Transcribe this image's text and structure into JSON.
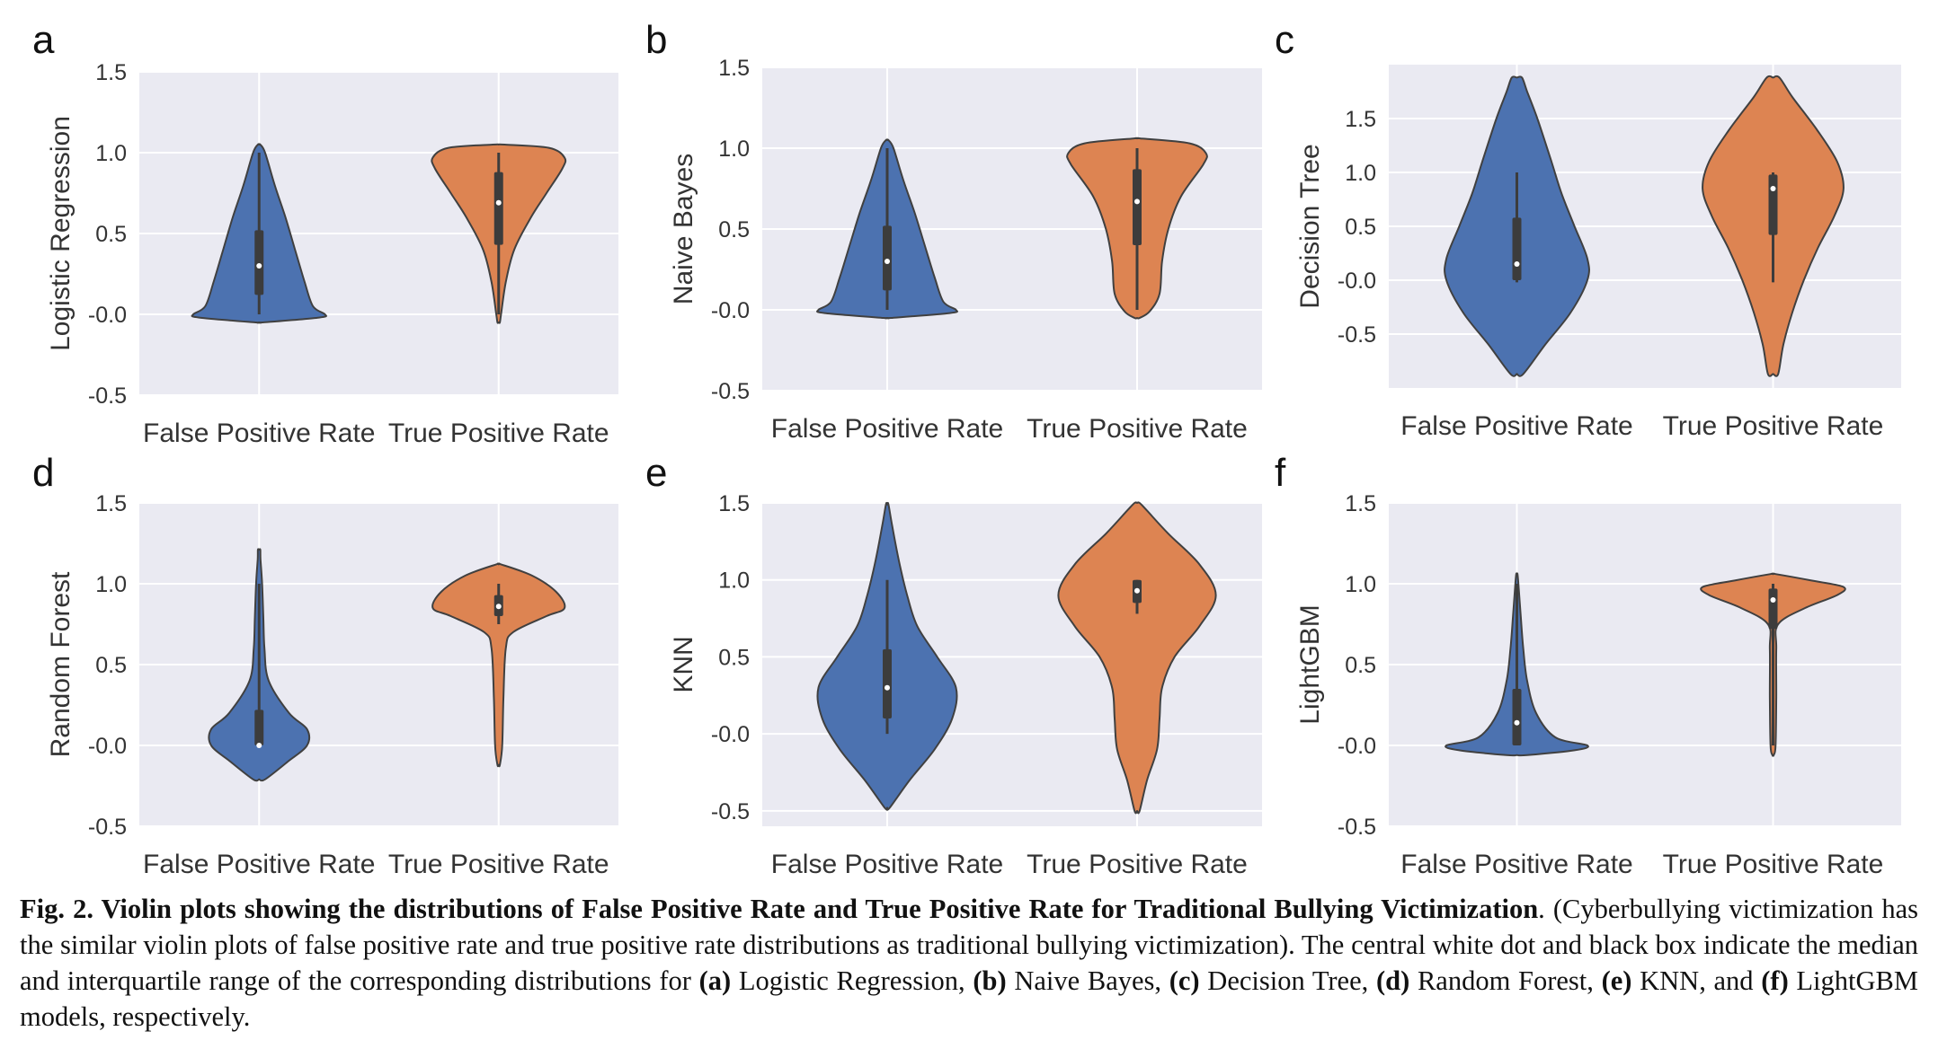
{
  "panel_letters": [
    "a",
    "b",
    "c",
    "d",
    "e",
    "f"
  ],
  "chart_data": [
    {
      "type": "violin",
      "ylabel": "Logistic Regression",
      "categories": [
        "False Positive Rate",
        "True Positive Rate"
      ],
      "yticks": [
        "-0.5",
        "-0.0",
        "0.5",
        "1.0",
        "1.5"
      ],
      "ylim": [
        -0.5,
        1.5
      ],
      "grid": true,
      "colors": [
        "#4c72b0",
        "#dd8452"
      ],
      "series": [
        {
          "min": -0.05,
          "max": 1.05,
          "q1": 0.12,
          "median": 0.3,
          "q3": 0.52,
          "whisker_low": 0.0,
          "whisker_high": 1.0,
          "profile": [
            [
              -0.05,
              0.03
            ],
            [
              -0.02,
              0.5
            ],
            [
              0.0,
              0.55
            ],
            [
              0.05,
              0.45
            ],
            [
              0.2,
              0.38
            ],
            [
              0.4,
              0.3
            ],
            [
              0.6,
              0.22
            ],
            [
              0.8,
              0.13
            ],
            [
              1.0,
              0.05
            ],
            [
              1.05,
              0.01
            ]
          ]
        },
        {
          "min": -0.05,
          "max": 1.05,
          "q1": 0.43,
          "median": 0.69,
          "q3": 0.88,
          "whisker_low": 0.0,
          "whisker_high": 1.0,
          "profile": [
            [
              -0.05,
              0.01
            ],
            [
              0.0,
              0.02
            ],
            [
              0.2,
              0.06
            ],
            [
              0.4,
              0.13
            ],
            [
              0.6,
              0.27
            ],
            [
              0.75,
              0.4
            ],
            [
              0.9,
              0.53
            ],
            [
              0.97,
              0.55
            ],
            [
              1.03,
              0.42
            ],
            [
              1.05,
              0.05
            ]
          ]
        }
      ]
    },
    {
      "type": "violin",
      "ylabel": "Naive Bayes",
      "categories": [
        "False Positive Rate",
        "True Positive Rate"
      ],
      "yticks": [
        "-0.5",
        "-0.0",
        "0.5",
        "1.0",
        "1.5"
      ],
      "ylim": [
        -0.5,
        1.5
      ],
      "grid": true,
      "colors": [
        "#4c72b0",
        "#dd8452"
      ],
      "series": [
        {
          "min": -0.05,
          "max": 1.05,
          "q1": 0.12,
          "median": 0.3,
          "q3": 0.52,
          "whisker_low": 0.0,
          "whisker_high": 1.0,
          "profile": [
            [
              -0.05,
              0.03
            ],
            [
              -0.02,
              0.5
            ],
            [
              0.0,
              0.55
            ],
            [
              0.05,
              0.45
            ],
            [
              0.2,
              0.38
            ],
            [
              0.4,
              0.3
            ],
            [
              0.6,
              0.22
            ],
            [
              0.8,
              0.13
            ],
            [
              1.0,
              0.05
            ],
            [
              1.05,
              0.01
            ]
          ]
        },
        {
          "min": -0.05,
          "max": 1.06,
          "q1": 0.4,
          "median": 0.67,
          "q3": 0.87,
          "whisker_low": 0.0,
          "whisker_high": 1.0,
          "profile": [
            [
              -0.05,
              0.02
            ],
            [
              -0.01,
              0.1
            ],
            [
              0.1,
              0.18
            ],
            [
              0.3,
              0.2
            ],
            [
              0.5,
              0.25
            ],
            [
              0.7,
              0.35
            ],
            [
              0.9,
              0.53
            ],
            [
              0.97,
              0.55
            ],
            [
              1.03,
              0.42
            ],
            [
              1.06,
              0.03
            ]
          ]
        }
      ]
    },
    {
      "type": "violin",
      "ylabel": "Decision Tree",
      "categories": [
        "False Positive Rate",
        "True Positive Rate"
      ],
      "yticks": [
        "-0.5",
        "-0.0",
        "0.5",
        "1.0",
        "1.5"
      ],
      "ylim": [
        -1.0,
        2.0
      ],
      "grid": true,
      "colors": [
        "#4c72b0",
        "#dd8452"
      ],
      "series": [
        {
          "min": -0.87,
          "max": 1.88,
          "q1": 0.0,
          "median": 0.15,
          "q3": 0.58,
          "whisker_low": -0.02,
          "whisker_high": 1.0,
          "profile": [
            [
              -0.87,
              0.05
            ],
            [
              -0.6,
              0.22
            ],
            [
              -0.3,
              0.42
            ],
            [
              0.0,
              0.55
            ],
            [
              0.2,
              0.55
            ],
            [
              0.5,
              0.45
            ],
            [
              0.8,
              0.35
            ],
            [
              1.1,
              0.27
            ],
            [
              1.5,
              0.16
            ],
            [
              1.75,
              0.08
            ],
            [
              1.88,
              0.04
            ]
          ]
        },
        {
          "min": -0.87,
          "max": 1.88,
          "q1": 0.42,
          "median": 0.85,
          "q3": 0.98,
          "whisker_low": -0.02,
          "whisker_high": 1.0,
          "profile": [
            [
              -0.87,
              0.04
            ],
            [
              -0.6,
              0.08
            ],
            [
              -0.3,
              0.15
            ],
            [
              0.0,
              0.24
            ],
            [
              0.3,
              0.35
            ],
            [
              0.6,
              0.48
            ],
            [
              0.85,
              0.55
            ],
            [
              1.1,
              0.5
            ],
            [
              1.4,
              0.34
            ],
            [
              1.7,
              0.15
            ],
            [
              1.88,
              0.05
            ]
          ]
        }
      ]
    },
    {
      "type": "violin",
      "ylabel": "Random Forest",
      "categories": [
        "False Positive Rate",
        "True Positive Rate"
      ],
      "yticks": [
        "-0.5",
        "-0.0",
        "0.5",
        "1.0",
        "1.5"
      ],
      "ylim": [
        -0.5,
        1.5
      ],
      "grid": true,
      "colors": [
        "#4c72b0",
        "#dd8452"
      ],
      "series": [
        {
          "min": -0.21,
          "max": 1.21,
          "q1": 0.0,
          "median": 0.0,
          "q3": 0.22,
          "whisker_low": -0.01,
          "whisker_high": 1.0,
          "profile": [
            [
              -0.21,
              0.05
            ],
            [
              -0.1,
              0.24
            ],
            [
              0.0,
              0.4
            ],
            [
              0.1,
              0.4
            ],
            [
              0.2,
              0.25
            ],
            [
              0.4,
              0.08
            ],
            [
              0.6,
              0.045
            ],
            [
              0.8,
              0.035
            ],
            [
              1.0,
              0.025
            ],
            [
              1.15,
              0.012
            ],
            [
              1.21,
              0.01
            ]
          ]
        },
        {
          "min": -0.12,
          "max": 1.12,
          "q1": 0.8,
          "median": 0.86,
          "q3": 0.93,
          "whisker_low": 0.75,
          "whisker_high": 1.0,
          "profile": [
            [
              -0.12,
              0.01
            ],
            [
              0.0,
              0.03
            ],
            [
              0.3,
              0.04
            ],
            [
              0.6,
              0.06
            ],
            [
              0.7,
              0.12
            ],
            [
              0.8,
              0.4
            ],
            [
              0.85,
              0.55
            ],
            [
              0.95,
              0.48
            ],
            [
              1.05,
              0.28
            ],
            [
              1.12,
              0.02
            ]
          ]
        }
      ]
    },
    {
      "type": "violin",
      "ylabel": "KNN",
      "categories": [
        "False Positive Rate",
        "True Positive Rate"
      ],
      "yticks": [
        "-0.5",
        "-0.0",
        "0.5",
        "1.0",
        "1.5"
      ],
      "ylim": [
        -0.6,
        1.5
      ],
      "grid": true,
      "colors": [
        "#4c72b0",
        "#dd8452"
      ],
      "series": [
        {
          "min": -0.48,
          "max": 1.49,
          "q1": 0.1,
          "median": 0.3,
          "q3": 0.55,
          "whisker_low": 0.0,
          "whisker_high": 1.0,
          "profile": [
            [
              -0.48,
              0.02
            ],
            [
              -0.3,
              0.18
            ],
            [
              -0.1,
              0.38
            ],
            [
              0.1,
              0.52
            ],
            [
              0.3,
              0.55
            ],
            [
              0.5,
              0.4
            ],
            [
              0.7,
              0.24
            ],
            [
              0.9,
              0.16
            ],
            [
              1.1,
              0.1
            ],
            [
              1.35,
              0.04
            ],
            [
              1.49,
              0.01
            ]
          ]
        },
        {
          "min": -0.5,
          "max": 1.5,
          "q1": 0.85,
          "median": 0.93,
          "q3": 1.0,
          "whisker_low": 0.78,
          "whisker_high": 1.0,
          "profile": [
            [
              -0.5,
              0.02
            ],
            [
              -0.3,
              0.08
            ],
            [
              -0.1,
              0.16
            ],
            [
              0.1,
              0.18
            ],
            [
              0.3,
              0.2
            ],
            [
              0.5,
              0.3
            ],
            [
              0.7,
              0.5
            ],
            [
              0.9,
              0.63
            ],
            [
              1.1,
              0.5
            ],
            [
              1.3,
              0.25
            ],
            [
              1.45,
              0.08
            ],
            [
              1.5,
              0.02
            ]
          ]
        }
      ]
    },
    {
      "type": "violin",
      "ylabel": "LightGBM",
      "categories": [
        "False Positive Rate",
        "True Positive Rate"
      ],
      "yticks": [
        "-0.5",
        "-0.0",
        "0.5",
        "1.0",
        "1.5"
      ],
      "ylim": [
        -0.5,
        1.5
      ],
      "grid": true,
      "colors": [
        "#4c72b0",
        "#dd8452"
      ],
      "series": [
        {
          "min": -0.06,
          "max": 1.06,
          "q1": 0.0,
          "median": 0.14,
          "q3": 0.35,
          "whisker_low": 0.0,
          "whisker_high": 1.0,
          "profile": [
            [
              -0.06,
              0.08
            ],
            [
              -0.03,
              0.45
            ],
            [
              0.0,
              0.55
            ],
            [
              0.05,
              0.3
            ],
            [
              0.2,
              0.15
            ],
            [
              0.4,
              0.08
            ],
            [
              0.6,
              0.05
            ],
            [
              0.8,
              0.03
            ],
            [
              1.0,
              0.012
            ],
            [
              1.06,
              0.005
            ]
          ]
        },
        {
          "min": -0.06,
          "max": 1.06,
          "q1": 0.72,
          "median": 0.9,
          "q3": 0.97,
          "whisker_low": 0.0,
          "whisker_high": 1.0,
          "profile": [
            [
              -0.06,
              0.005
            ],
            [
              0.0,
              0.02
            ],
            [
              0.3,
              0.025
            ],
            [
              0.6,
              0.025
            ],
            [
              0.75,
              0.04
            ],
            [
              0.85,
              0.25
            ],
            [
              0.93,
              0.5
            ],
            [
              0.98,
              0.55
            ],
            [
              1.02,
              0.3
            ],
            [
              1.06,
              0.02
            ]
          ]
        }
      ]
    }
  ],
  "caption": {
    "bold_lead": "Fig. 2. Violin plots showing the distributions of False Positive Rate and True Positive Rate for Traditional Bullying Victimization",
    "text1": ". (Cyberbullying victimization has the similar violin plots of false positive rate and true positive rate distributions as traditional bullying victimization). The central white dot and black box indicate the median and interquartile range of the corresponding distributions for ",
    "a": "(a)",
    "t_a": " Logistic Regression, ",
    "b": "(b)",
    "t_b": " Naive Bayes, ",
    "c": "(c)",
    "t_c": " Decision Tree, ",
    "d": "(d)",
    "t_d": " Random Forest, ",
    "e": "(e)",
    "t_e": " KNN, and ",
    "f": "(f)",
    "t_f": " LightGBM models, respectively."
  }
}
